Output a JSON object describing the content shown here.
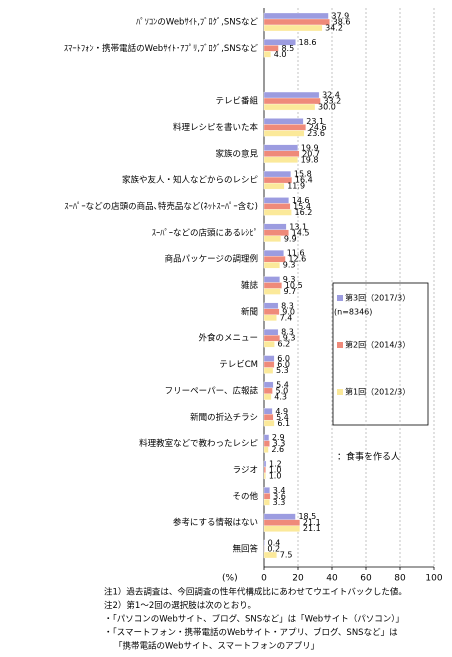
{
  "chart_data": {
    "type": "hbar",
    "categories": [
      "ﾊﾟｿｺﾝのWebｻｲﾄ,ﾌﾞﾛｸﾞ,SNSなど",
      "ｽﾏｰﾄﾌｫﾝ・携帯電話のWebｻｲﾄ･ｱﾌﾟﾘ,ﾌﾞﾛｸﾞ,SNSなど",
      null,
      "テレビ番組",
      "料理レシピを書いた本",
      "家族の意見",
      "家族や友人・知人などからのレシピ",
      "ｽｰﾊﾟｰなどの店頭の商品､特売品など(ﾈｯﾄｽｰﾊﾟｰ含む)",
      "ｽｰﾊﾟｰなどの店頭にあるﾚｼﾋﾟ",
      "商品パッケージの調理例",
      "雑誌",
      "新聞",
      "外食のメニュー",
      "テレビCM",
      "フリーペーパー、広報誌",
      "新聞の折込チラシ",
      "料理教室などで教わったレシピ",
      "ラジオ",
      "その他",
      "参考にする情報はない",
      "無回答"
    ],
    "series": [
      {
        "name": "第3回（2017/3）",
        "color": "#9c9ce0",
        "values": [
          37.9,
          18.6,
          null,
          32.4,
          23.1,
          19.9,
          15.8,
          14.6,
          13.1,
          11.6,
          9.3,
          8.3,
          8.3,
          6.0,
          5.4,
          4.9,
          2.9,
          1.2,
          3.4,
          18.5,
          0.4
        ],
        "value_labels": [
          "37.9",
          "18.6",
          null,
          "32.4",
          "23.1",
          "19.9",
          "15.8",
          "14.6",
          "13.1",
          "11.6",
          "9.3",
          "8.3",
          "8.3",
          "6.0",
          "5.4",
          "4.9",
          "2.9",
          "1.2",
          "3.4",
          "18.5",
          "0.4"
        ]
      },
      {
        "name": "第2回（2014/3）",
        "color": "#ef8a7a",
        "values": [
          38.6,
          8.5,
          null,
          33.2,
          24.6,
          20.7,
          16.4,
          15.4,
          14.5,
          12.6,
          10.5,
          9.0,
          9.3,
          6.0,
          5.0,
          5.4,
          3.3,
          1.0,
          3.6,
          21.1,
          0.2
        ],
        "value_labels": [
          "38.6",
          "8.5",
          null,
          "33.2",
          "24.6",
          "20.7",
          "16.4",
          "15.4",
          "14.5",
          "12.6",
          "10.5",
          "9.0",
          "9.3",
          "6.0",
          "5.0",
          "5.4",
          "3.3",
          "1.0",
          "3.6",
          "21.1",
          "0.2"
        ]
      },
      {
        "name": "第1回（2012/3）",
        "color": "#fbe99a",
        "values": [
          34.2,
          4.0,
          null,
          30.0,
          23.6,
          19.8,
          11.9,
          16.2,
          9.9,
          9.3,
          9.7,
          7.4,
          6.2,
          5.3,
          4.3,
          6.1,
          2.6,
          1.0,
          3.3,
          21.1,
          7.5
        ],
        "value_labels": [
          "34.2",
          "4.0",
          null,
          "30.0",
          "23.6",
          "19.8",
          "11.9",
          "16.2",
          "9.9",
          "9.3",
          "9.7",
          "7.4",
          "6.2",
          "5.3",
          "4.3",
          "6.1",
          "2.6",
          "1.0",
          "3.3",
          "21.1",
          "7.5"
        ]
      }
    ],
    "n_label": "(n=8346)",
    "annotation": "：食事を作る人",
    "xlabel": "(%)",
    "xlim": [
      0,
      100
    ],
    "xticks": [
      0,
      20,
      40,
      60,
      80,
      100
    ],
    "grid": true,
    "notes": [
      "注1）過去調査は、今回調査の性年代構成比にあわせてウエイトバックした値。",
      "注2）第1〜2回の選択肢は次のとおり。",
      "・「パソコンのWebサイト、ブログ、SNSなど」は「Webサイト（パソコン）」",
      "・「スマートフォン・携帯電話のWebサイト・アプリ、ブログ、SNSなど」は",
      "「携帯電話のWebサイト、スマートフォンのアプリ」"
    ]
  }
}
